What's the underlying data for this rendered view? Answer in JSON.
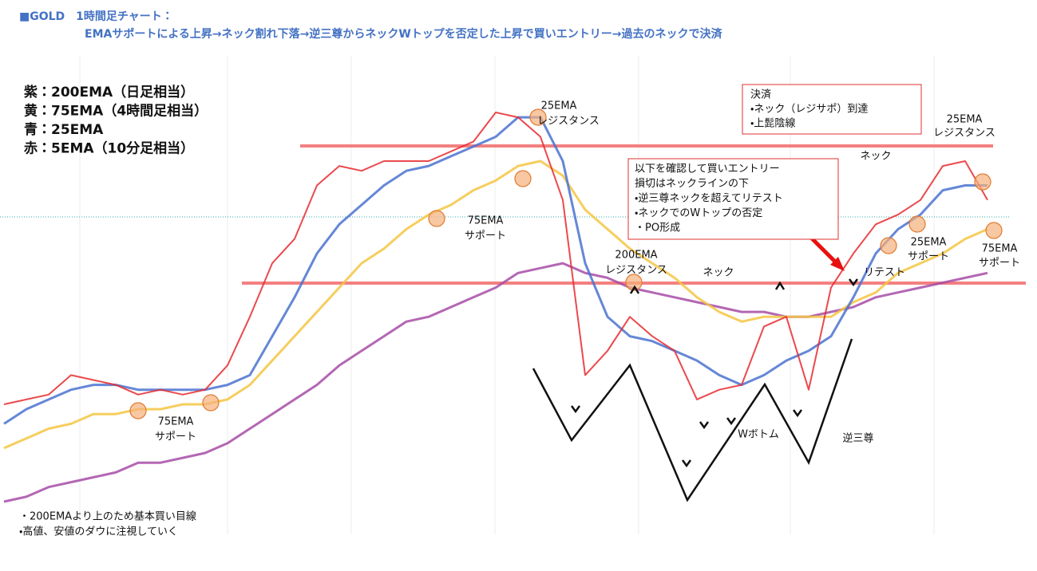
{
  "chart_data": {
    "type": "line",
    "title": "■GOLD　1時間足チャート：",
    "subtitle": "EMAサポートによる上昇→ネック割れ下落→逆三尊からネックWトップを否定した上昇で買いエントリー→過去のネックで決済",
    "categories": [
      null,
      null,
      null,
      null,
      null,
      null,
      null,
      null,
      null,
      null,
      null,
      null,
      null,
      null,
      null,
      null,
      null,
      null,
      null,
      null,
      null,
      null,
      null,
      null,
      null,
      null,
      null,
      null,
      null,
      null,
      null,
      null,
      null,
      null,
      null,
      null,
      null,
      null,
      null,
      null,
      null,
      null,
      null,
      null,
      null
    ],
    "ylim": [
      0,
      100
    ],
    "series": [
      {
        "name": "紫：200EMA（日足相当）",
        "color": "#a64ca6",
        "values": [
          10,
          11,
          13,
          14,
          15,
          16,
          18,
          18,
          19,
          20,
          22,
          25,
          28,
          31,
          34,
          38,
          41,
          44,
          47,
          48,
          50,
          52,
          54,
          57,
          58,
          59,
          57,
          56,
          54,
          53,
          52,
          51,
          50,
          49,
          49,
          48,
          48,
          49,
          50,
          52,
          53,
          54,
          55,
          56,
          57
        ]
      },
      {
        "name": "黄：75EMA（4時間足相当）",
        "color": "#f5c542",
        "values": [
          21,
          23,
          25,
          26,
          28,
          28,
          29,
          29,
          30,
          30,
          31,
          34,
          39,
          44,
          49,
          54,
          59,
          62,
          66,
          69,
          71,
          74,
          76,
          79,
          80,
          77,
          70,
          66,
          62,
          59,
          56,
          52,
          49,
          47,
          48,
          48,
          48,
          48,
          51,
          53,
          57,
          59,
          61,
          64,
          66
        ]
      },
      {
        "name": "青：25EMA",
        "color": "#4a72d0",
        "values": [
          26,
          29,
          31,
          33,
          34,
          34,
          33,
          33,
          33,
          33,
          34,
          36,
          44,
          52,
          61,
          67,
          71,
          75,
          78,
          79,
          81,
          83,
          85,
          89,
          89,
          80,
          59,
          48,
          44,
          43,
          41,
          39,
          36,
          34,
          36,
          39,
          41,
          44,
          52,
          61,
          66,
          69,
          74,
          75,
          75
        ]
      },
      {
        "name": "赤：5EMA（10分足相当）",
        "color": "#e8292e",
        "values": [
          30,
          31,
          32,
          36,
          35,
          34,
          32,
          33,
          32,
          33,
          38,
          48,
          59,
          64,
          75,
          79,
          78,
          80,
          80,
          80,
          82,
          84,
          90,
          89,
          85,
          72,
          36,
          41,
          48,
          44,
          41,
          31,
          33,
          34,
          46,
          48,
          33,
          54,
          61,
          67,
          69,
          72,
          79,
          80,
          72
        ]
      }
    ],
    "annotations": [
      "25EMA",
      "レジスタンス",
      "75EMA",
      "サポート",
      "200EMA",
      "レジスタンス",
      "ネック",
      "ネック",
      "75EMA",
      "サポート",
      "Wボトム",
      "逆三尊",
      "リテスト",
      "25EMA",
      "サポート",
      "75EMA",
      "サポート",
      "25EMA",
      "レジスタンス"
    ],
    "exit_note": [
      "決済",
      "・ネック（レジサポ）到達",
      "・上髭陰線"
    ],
    "entry_note": [
      "以下を確認して買いエントリー",
      "損切はネックラインの下",
      "・逆三尊ネックを超えてリテスト",
      "・ネックでのWトップの否定",
      "・PO形成"
    ],
    "notes": [
      "・200EMAより上のため基本買い目線",
      "・高値、安値のダウに注視していく"
    ]
  }
}
